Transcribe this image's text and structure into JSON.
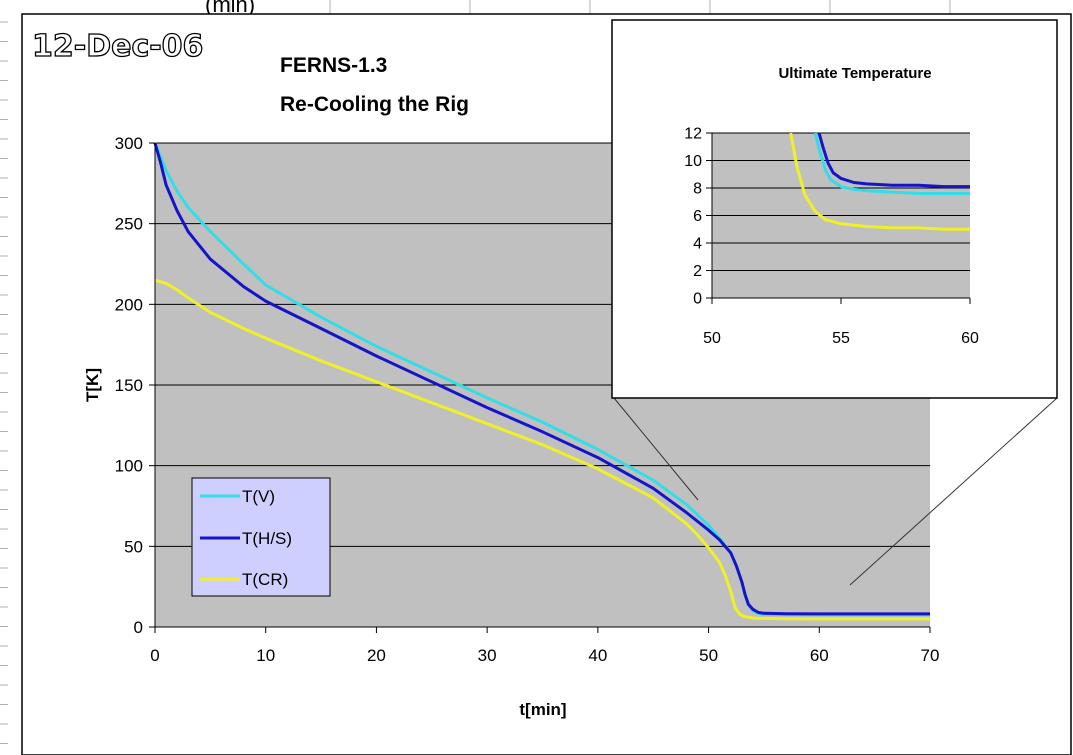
{
  "header_fragment": "(min)",
  "stamp": "12-Dec-06",
  "colors": {
    "plot_bg": "#c0c0c0",
    "grid": "#000000",
    "series_v": "#33dde8",
    "series_hs": "#1414c8",
    "series_cr": "#f0f028",
    "legend_bg": "#cfcfff"
  },
  "chart_data": [
    {
      "type": "line",
      "title": "FERNS-1.3",
      "subtitle": "Re-Cooling the Rig",
      "xlabel": "t[min]",
      "ylabel": "T[K]",
      "xlim": [
        0,
        70
      ],
      "ylim": [
        0,
        300
      ],
      "xticks": [
        "0",
        "10",
        "20",
        "30",
        "40",
        "50",
        "60",
        "70"
      ],
      "yticks": [
        "0",
        "50",
        "100",
        "150",
        "200",
        "250",
        "300"
      ],
      "grid": true,
      "legend_position": "lower-left",
      "series": [
        {
          "name": "T(V)",
          "color": "#33dde8",
          "x": [
            0,
            1,
            2,
            3,
            5,
            8,
            10,
            15,
            20,
            25,
            30,
            35,
            40,
            45,
            48,
            50,
            51,
            52,
            52.5,
            53,
            53.3,
            53.6,
            54,
            54.5,
            55,
            57,
            60,
            65,
            70
          ],
          "y": [
            300,
            283,
            270,
            260,
            245,
            225,
            212,
            192,
            174,
            158,
            142,
            127,
            110,
            91,
            76,
            63,
            55,
            46,
            38,
            28,
            20,
            14,
            10,
            8.5,
            8,
            7.7,
            7.6,
            7.6,
            7.6
          ]
        },
        {
          "name": "T(H/S)",
          "color": "#1414c8",
          "x": [
            0,
            0.5,
            1,
            2,
            3,
            5,
            8,
            10,
            15,
            20,
            25,
            30,
            35,
            40,
            45,
            48,
            50,
            51,
            52,
            52.5,
            53,
            53.3,
            53.6,
            54,
            54.5,
            55,
            57,
            60,
            65,
            70
          ],
          "y": [
            300,
            288,
            274,
            258,
            245,
            228,
            211,
            202,
            185,
            168,
            152,
            136,
            121,
            105,
            86,
            71,
            60,
            54,
            46,
            38,
            28,
            20,
            14,
            11,
            9,
            8.5,
            8.2,
            8.1,
            8.1,
            8.1
          ]
        },
        {
          "name": "T(CR)",
          "color": "#f0f028",
          "x": [
            0,
            1,
            2,
            3,
            5,
            8,
            10,
            15,
            20,
            25,
            30,
            35,
            40,
            45,
            48,
            49,
            50,
            51,
            51.5,
            52,
            52.4,
            52.8,
            53.2,
            53.6,
            54,
            54.5,
            55,
            57,
            60,
            65,
            70
          ],
          "y": [
            215,
            213,
            209,
            204,
            195,
            185,
            179,
            165,
            152,
            139,
            126,
            113,
            98,
            80,
            64,
            57,
            49,
            40,
            32,
            22,
            12,
            8,
            6.5,
            6,
            5.6,
            5.4,
            5.3,
            5.1,
            5,
            5,
            5
          ]
        }
      ]
    },
    {
      "type": "line",
      "title": "Ultimate Temperature",
      "xlim": [
        50,
        60
      ],
      "ylim": [
        0,
        12
      ],
      "xticks": [
        "50",
        "55",
        "60"
      ],
      "yticks": [
        "0",
        "2",
        "4",
        "6",
        "8",
        "10",
        "12"
      ],
      "grid": true,
      "series": [
        {
          "color": "#33dde8",
          "x": [
            54.0,
            54.2,
            54.4,
            54.6,
            55,
            55.5,
            56,
            57,
            58,
            59,
            60
          ],
          "y": [
            12,
            10.5,
            9.3,
            8.6,
            8.1,
            7.9,
            7.8,
            7.7,
            7.6,
            7.6,
            7.6
          ]
        },
        {
          "color": "#1414c8",
          "x": [
            54.15,
            54.3,
            54.5,
            54.7,
            55,
            55.5,
            56,
            57,
            58,
            59,
            60
          ],
          "y": [
            12,
            11,
            9.8,
            9.1,
            8.7,
            8.4,
            8.3,
            8.2,
            8.2,
            8.1,
            8.1
          ]
        },
        {
          "color": "#f0f028",
          "x": [
            53.05,
            53.3,
            53.6,
            54.0,
            54.4,
            55,
            56,
            57,
            58,
            59,
            60
          ],
          "y": [
            12,
            9.5,
            7.5,
            6.3,
            5.7,
            5.4,
            5.2,
            5.1,
            5.1,
            5.0,
            5.0
          ]
        }
      ]
    }
  ]
}
